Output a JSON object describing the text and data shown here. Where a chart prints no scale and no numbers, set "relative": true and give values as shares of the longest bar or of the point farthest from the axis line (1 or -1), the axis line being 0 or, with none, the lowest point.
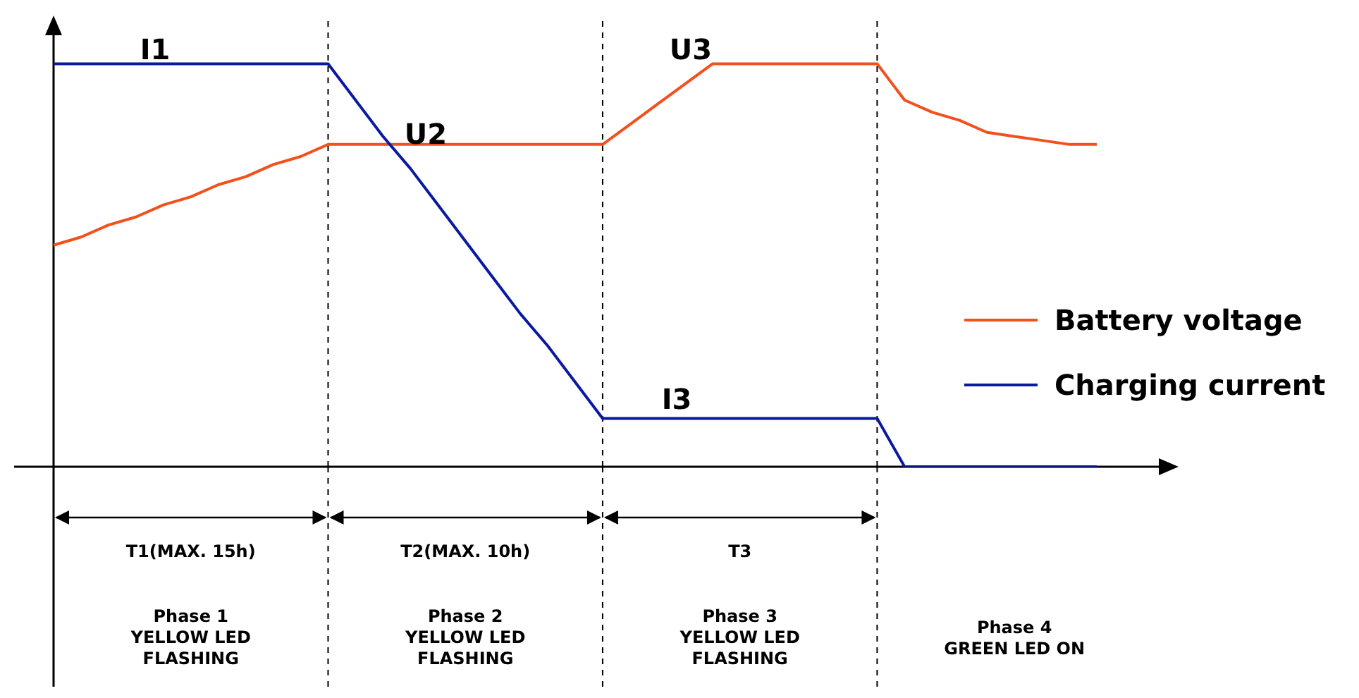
{
  "chart_data": {
    "type": "line",
    "relative": true,
    "legend": "right",
    "grid": "x",
    "line_style": "solid",
    "categories": [
      null,
      null,
      null,
      null,
      null,
      null,
      null,
      null,
      null,
      null,
      null,
      null,
      null,
      null,
      null,
      null,
      null,
      null,
      null,
      null,
      null,
      null,
      null,
      null,
      null,
      null,
      null,
      null,
      null,
      null,
      null,
      null,
      null,
      null,
      null,
      null,
      null,
      null,
      null
    ],
    "series": [
      {
        "name": "Battery voltage",
        "color": "#f2501c",
        "values": [
          0.55,
          0.57,
          0.6,
          0.62,
          0.65,
          0.67,
          0.7,
          0.72,
          0.75,
          0.77,
          0.8,
          0.8,
          0.8,
          0.8,
          0.8,
          0.8,
          0.8,
          0.8,
          0.8,
          0.8,
          0.8,
          0.85,
          0.9,
          0.95,
          1,
          1,
          1,
          1,
          1,
          1,
          1,
          0.91,
          0.88,
          0.86,
          0.83,
          0.82,
          0.81,
          0.8,
          0.8
        ]
      },
      {
        "name": "Charging current",
        "color": "#0a1aa0",
        "values": [
          1,
          1,
          1,
          1,
          1,
          1,
          1,
          1,
          1,
          1,
          1,
          0.91,
          0.82,
          0.74,
          0.65,
          0.56,
          0.47,
          0.38,
          0.3,
          0.21,
          0.12,
          0.12,
          0.12,
          0.12,
          0.12,
          0.12,
          0.12,
          0.12,
          0.12,
          0.12,
          0.12,
          0,
          0,
          0,
          0,
          0,
          0,
          0,
          0
        ]
      }
    ],
    "annotations": [
      "I1",
      "U2",
      "U3",
      "I3",
      "T1(MAX. 15h)",
      "T2(MAX. 10h)",
      "T3",
      "Phase 1\nYELLOW LED\nFLASHING",
      "Phase 2\nYELLOW LED\nFLASHING",
      "Phase 3\nYELLOW LED\nFLASHING",
      "Phase 4\nGREEN LED ON"
    ]
  }
}
